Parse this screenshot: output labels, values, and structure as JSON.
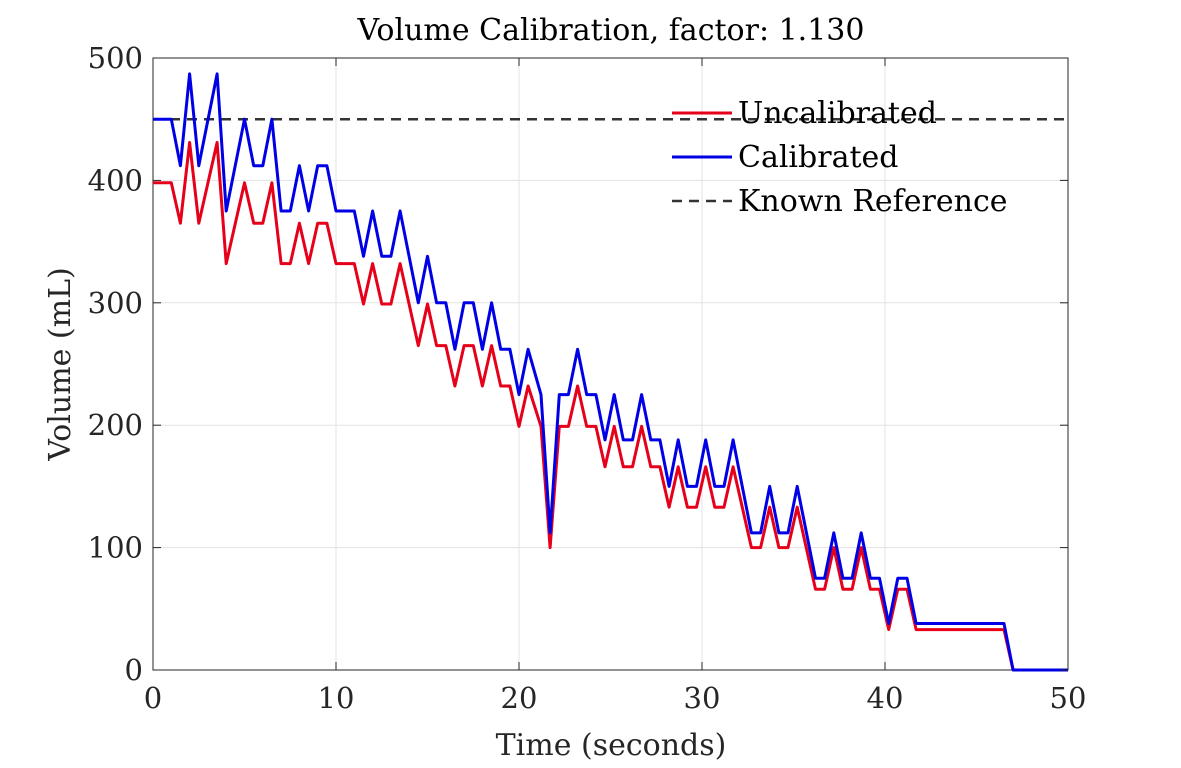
{
  "chart_data": {
    "type": "line",
    "title": "Volume Calibration, factor: 1.130",
    "xlabel": "Time (seconds)",
    "ylabel": "Volume (mL)",
    "xlim": [
      0,
      50
    ],
    "ylim": [
      0,
      500
    ],
    "xticks": [
      0,
      10,
      20,
      30,
      40,
      50
    ],
    "yticks": [
      0,
      100,
      200,
      300,
      400,
      500
    ],
    "grid": true,
    "legend_location": "top-right",
    "series": [
      {
        "name": "Uncalibrated",
        "color": "#e6001a",
        "style": "solid",
        "points": [
          [
            0,
            398
          ],
          [
            1,
            398
          ],
          [
            1.5,
            365
          ],
          [
            2,
            431
          ],
          [
            2.5,
            365
          ],
          [
            3.5,
            431
          ],
          [
            4,
            332
          ],
          [
            5,
            398
          ],
          [
            5.5,
            365
          ],
          [
            6,
            365
          ],
          [
            6.5,
            398
          ],
          [
            7,
            332
          ],
          [
            7.5,
            332
          ],
          [
            8,
            365
          ],
          [
            8.5,
            332
          ],
          [
            9,
            365
          ],
          [
            9.5,
            365
          ],
          [
            10,
            332
          ],
          [
            11,
            332
          ],
          [
            11.5,
            299
          ],
          [
            12,
            332
          ],
          [
            12.5,
            299
          ],
          [
            13,
            299
          ],
          [
            13.5,
            332
          ],
          [
            14.5,
            265
          ],
          [
            15,
            299
          ],
          [
            15.5,
            265
          ],
          [
            16,
            265
          ],
          [
            16.5,
            232
          ],
          [
            17,
            265
          ],
          [
            17.5,
            265
          ],
          [
            18,
            232
          ],
          [
            18.5,
            265
          ],
          [
            19,
            232
          ],
          [
            19.5,
            232
          ],
          [
            20,
            199
          ],
          [
            20.5,
            232
          ],
          [
            21.2,
            199
          ],
          [
            21.7,
            100
          ],
          [
            22.2,
            199
          ],
          [
            22.7,
            199
          ],
          [
            23.2,
            232
          ],
          [
            23.7,
            199
          ],
          [
            24.2,
            199
          ],
          [
            24.7,
            166
          ],
          [
            25.2,
            199
          ],
          [
            25.7,
            166
          ],
          [
            26.2,
            166
          ],
          [
            26.7,
            199
          ],
          [
            27.2,
            166
          ],
          [
            27.7,
            166
          ],
          [
            28.2,
            133
          ],
          [
            28.7,
            166
          ],
          [
            29.2,
            133
          ],
          [
            29.7,
            133
          ],
          [
            30.2,
            166
          ],
          [
            30.7,
            133
          ],
          [
            31.2,
            133
          ],
          [
            31.7,
            166
          ],
          [
            32.7,
            100
          ],
          [
            33.2,
            100
          ],
          [
            33.7,
            133
          ],
          [
            34.2,
            100
          ],
          [
            34.7,
            100
          ],
          [
            35.2,
            133
          ],
          [
            36.2,
            66
          ],
          [
            36.7,
            66
          ],
          [
            37.2,
            100
          ],
          [
            37.7,
            66
          ],
          [
            38.2,
            66
          ],
          [
            38.7,
            100
          ],
          [
            39.2,
            66
          ],
          [
            39.7,
            66
          ],
          [
            40.2,
            33
          ],
          [
            40.7,
            66
          ],
          [
            41.2,
            66
          ],
          [
            41.7,
            33
          ],
          [
            46.5,
            33
          ],
          [
            47,
            0
          ],
          [
            50,
            0
          ]
        ]
      },
      {
        "name": "Calibrated",
        "color": "#0000e6",
        "style": "solid",
        "points": [
          [
            0,
            450
          ],
          [
            1,
            450
          ],
          [
            1.5,
            412
          ],
          [
            2,
            487
          ],
          [
            2.5,
            412
          ],
          [
            3.5,
            487
          ],
          [
            4,
            375
          ],
          [
            5,
            450
          ],
          [
            5.5,
            412
          ],
          [
            6,
            412
          ],
          [
            6.5,
            450
          ],
          [
            7,
            375
          ],
          [
            7.5,
            375
          ],
          [
            8,
            412
          ],
          [
            8.5,
            375
          ],
          [
            9,
            412
          ],
          [
            9.5,
            412
          ],
          [
            10,
            375
          ],
          [
            11,
            375
          ],
          [
            11.5,
            338
          ],
          [
            12,
            375
          ],
          [
            12.5,
            338
          ],
          [
            13,
            338
          ],
          [
            13.5,
            375
          ],
          [
            14.5,
            300
          ],
          [
            15,
            338
          ],
          [
            15.5,
            300
          ],
          [
            16,
            300
          ],
          [
            16.5,
            262
          ],
          [
            17,
            300
          ],
          [
            17.5,
            300
          ],
          [
            18,
            262
          ],
          [
            18.5,
            300
          ],
          [
            19,
            262
          ],
          [
            19.5,
            262
          ],
          [
            20,
            225
          ],
          [
            20.5,
            262
          ],
          [
            21.2,
            225
          ],
          [
            21.7,
            112
          ],
          [
            22.2,
            225
          ],
          [
            22.7,
            225
          ],
          [
            23.2,
            262
          ],
          [
            23.7,
            225
          ],
          [
            24.2,
            225
          ],
          [
            24.7,
            188
          ],
          [
            25.2,
            225
          ],
          [
            25.7,
            188
          ],
          [
            26.2,
            188
          ],
          [
            26.7,
            225
          ],
          [
            27.2,
            188
          ],
          [
            27.7,
            188
          ],
          [
            28.2,
            150
          ],
          [
            28.7,
            188
          ],
          [
            29.2,
            150
          ],
          [
            29.7,
            150
          ],
          [
            30.2,
            188
          ],
          [
            30.7,
            150
          ],
          [
            31.2,
            150
          ],
          [
            31.7,
            188
          ],
          [
            32.7,
            112
          ],
          [
            33.2,
            112
          ],
          [
            33.7,
            150
          ],
          [
            34.2,
            112
          ],
          [
            34.7,
            112
          ],
          [
            35.2,
            150
          ],
          [
            36.2,
            75
          ],
          [
            36.7,
            75
          ],
          [
            37.2,
            112
          ],
          [
            37.7,
            75
          ],
          [
            38.2,
            75
          ],
          [
            38.7,
            112
          ],
          [
            39.2,
            75
          ],
          [
            39.7,
            75
          ],
          [
            40.2,
            38
          ],
          [
            40.7,
            75
          ],
          [
            41.2,
            75
          ],
          [
            41.7,
            38
          ],
          [
            46.5,
            38
          ],
          [
            47,
            0
          ],
          [
            50,
            0
          ]
        ]
      },
      {
        "name": "Known Reference",
        "color": "#333333",
        "style": "dashed",
        "points": [
          [
            0,
            450
          ],
          [
            50,
            450
          ]
        ]
      }
    ]
  }
}
